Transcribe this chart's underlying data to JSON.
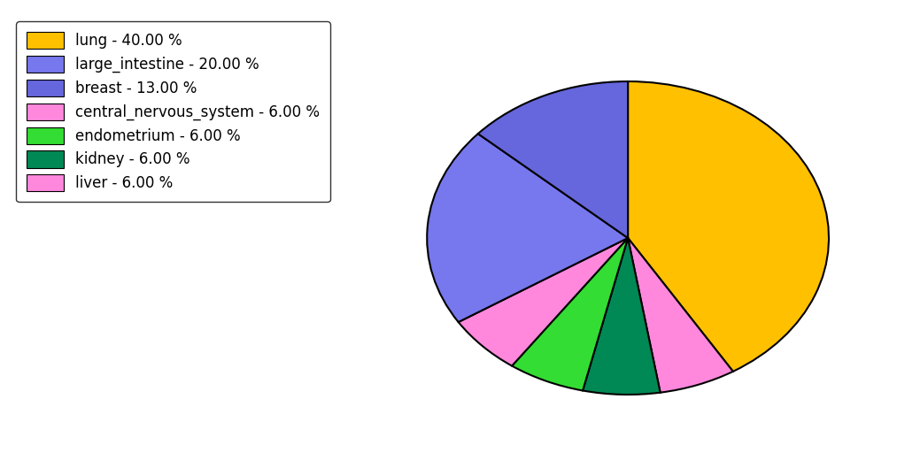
{
  "pie_order": [
    "lung",
    "central_nervous_system",
    "kidney",
    "endometrium",
    "liver",
    "large_intestine",
    "breast"
  ],
  "pie_values": [
    40.0,
    6.0,
    6.0,
    6.0,
    6.0,
    20.0,
    13.0
  ],
  "pie_colors": [
    "#FFC000",
    "#FF88DD",
    "#008855",
    "#33DD33",
    "#FF88DD",
    "#7777EE",
    "#6666DD"
  ],
  "legend_labels": [
    "lung - 40.00 %",
    "large_intestine - 20.00 %",
    "breast - 13.00 %",
    "central_nervous_system - 6.00 %",
    "endometrium - 6.00 %",
    "kidney - 6.00 %",
    "liver - 6.00 %"
  ],
  "legend_colors": [
    "#FFC000",
    "#7777EE",
    "#6666DD",
    "#FF88DD",
    "#33DD33",
    "#008855",
    "#FF88DD"
  ],
  "startangle": 90,
  "figsize": [
    10.13,
    5.38
  ],
  "dpi": 100,
  "background_color": "#FFFFFF"
}
